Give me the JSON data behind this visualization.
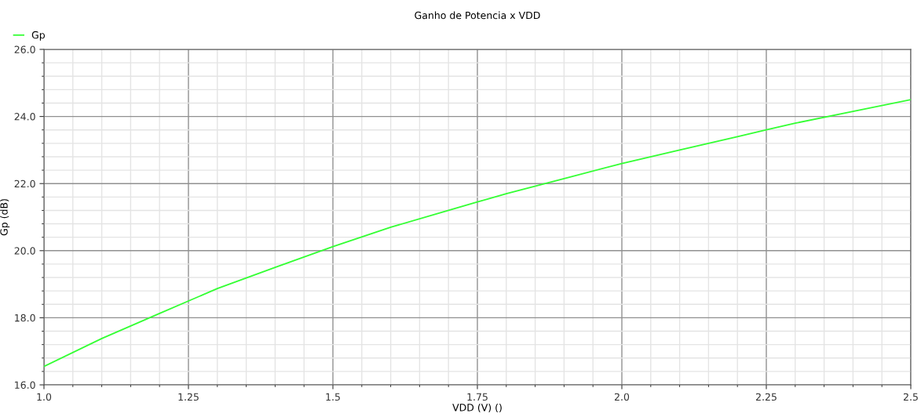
{
  "chart_data": {
    "type": "line",
    "title": "Ganho de Potencia x VDD",
    "xlabel": "VDD (V) ()",
    "ylabel": "Gp (dB)",
    "x": [
      1.0,
      1.1,
      1.2,
      1.25,
      1.3,
      1.4,
      1.5,
      1.6,
      1.7,
      1.75,
      1.8,
      1.9,
      2.0,
      2.1,
      2.2,
      2.25,
      2.3,
      2.4,
      2.5
    ],
    "series": [
      {
        "name": "Gp",
        "color": "#33ff33",
        "values": [
          16.55,
          17.38,
          18.13,
          18.5,
          18.87,
          19.5,
          20.12,
          20.7,
          21.2,
          21.45,
          21.7,
          22.15,
          22.6,
          23.0,
          23.4,
          23.6,
          23.8,
          24.15,
          24.5
        ]
      }
    ],
    "xlim": [
      1.0,
      2.5
    ],
    "xticks": [
      {
        "value": 1,
        "label": "1.0"
      },
      1.25,
      1.5,
      1.75,
      {
        "value": 2,
        "label": "2.0"
      },
      2.25,
      2.5
    ],
    "ylim": [
      16.0,
      26.0
    ],
    "yticks": [
      {
        "value": 16,
        "label": "16.0"
      },
      {
        "value": 18,
        "label": "18.0"
      },
      {
        "value": 20,
        "label": "20.0"
      },
      {
        "value": 22,
        "label": "22.0"
      },
      {
        "value": 24,
        "label": "24.0"
      },
      {
        "value": 26,
        "label": "26.0"
      }
    ],
    "grid": true,
    "legend": "top left",
    "marker": "none",
    "line_style": "solid"
  }
}
